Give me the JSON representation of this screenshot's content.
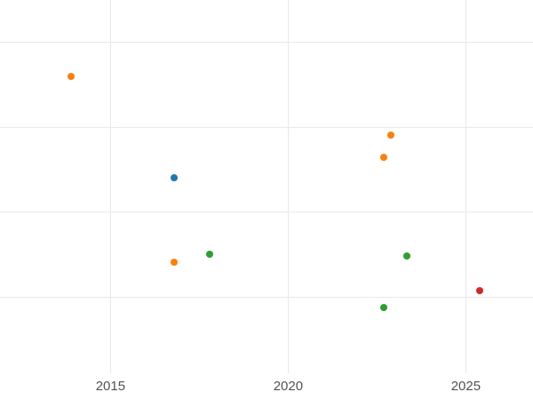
{
  "chart_data": {
    "type": "scatter",
    "title": "",
    "xlabel": "",
    "ylabel": "",
    "legend": "none",
    "grid": true,
    "grid_color": "#e8e8e8",
    "tick_label_color": "#525252",
    "x_range": [
      2011.89,
      2026.89
    ],
    "y_range": [
      0.1,
      4.49
    ],
    "x_ticks": [
      {
        "label": "2015",
        "value": 2015
      },
      {
        "label": "2020",
        "value": 2020
      },
      {
        "label": "2025",
        "value": 2025
      }
    ],
    "y_gridlines": [
      1,
      2,
      3,
      4
    ],
    "series": [
      {
        "name": "series-blue",
        "color": "#1f77b4",
        "points": [
          {
            "x": 2016.8,
            "y": 2.4
          }
        ]
      },
      {
        "name": "series-orange",
        "color": "#ff7f0e",
        "points": [
          {
            "x": 2013.9,
            "y": 3.59
          },
          {
            "x": 2022.9,
            "y": 2.9
          },
          {
            "x": 2022.7,
            "y": 2.64
          },
          {
            "x": 2016.8,
            "y": 1.41
          }
        ]
      },
      {
        "name": "series-green",
        "color": "#2ca02c",
        "points": [
          {
            "x": 2017.8,
            "y": 1.5
          },
          {
            "x": 2023.35,
            "y": 1.48
          },
          {
            "x": 2022.7,
            "y": 0.87
          }
        ]
      },
      {
        "name": "series-red",
        "color": "#d62728",
        "points": [
          {
            "x": 2025.4,
            "y": 1.07
          }
        ]
      }
    ]
  }
}
